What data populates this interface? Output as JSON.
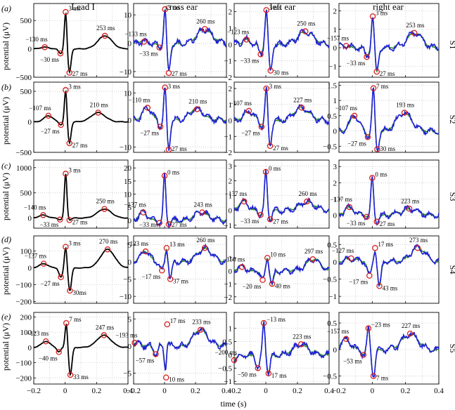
{
  "figure": {
    "x_axis_label": "time (s)",
    "y_axis_label": "potential (μV)",
    "columns": [
      "Lead I",
      "cross ear",
      "left ear",
      "right ear"
    ],
    "rows": [
      {
        "label": "(a)",
        "subject": "S1"
      },
      {
        "label": "(b)",
        "subject": "S2"
      },
      {
        "label": "(c)",
        "subject": "S3"
      },
      {
        "label": "(d)",
        "subject": "S4"
      },
      {
        "label": "(e)",
        "subject": "S5"
      }
    ],
    "series_colors": {
      "lead": "#000000",
      "ear_primary": "#1f1fd6",
      "ear_secondary": "#2e8b2e",
      "marker": "#d62020"
    }
  },
  "chart_data": {
    "type": "line",
    "x_range": [
      -0.2,
      0.4
    ],
    "x_ticks": [
      -0.2,
      0,
      0.2,
      0.4
    ],
    "x_tick_labels": [
      "−0.2",
      "0",
      "0.2",
      "0.4"
    ],
    "grid": true,
    "panels": [
      {
        "row": 0,
        "col": 0,
        "ylim": [
          -500,
          800
        ],
        "yticks": [
          500,
          0,
          -500
        ],
        "features": [
          [
            -0.13,
            30
          ],
          [
            -0.03,
            -80
          ],
          [
            0.003,
            650
          ],
          [
            0.027,
            -420
          ],
          [
            0.253,
            230
          ]
        ],
        "labels": [
          "−130 ms",
          "−30 ms",
          "3 ms",
          "27 ms",
          "253 ms"
        ]
      },
      {
        "row": 0,
        "col": 1,
        "ylim": [
          -12,
          14
        ],
        "yticks": [
          10,
          0,
          -10
        ],
        "features": [
          [
            -0.133,
            0.5
          ],
          [
            -0.033,
            -1.5
          ],
          [
            0.003,
            12
          ],
          [
            0.027,
            -10.5
          ],
          [
            0.26,
            5
          ]
        ],
        "labels": [
          "−133 ms",
          "−33 ms",
          "3 ms",
          "27 ms",
          "260 ms"
        ]
      },
      {
        "row": 0,
        "col": 2,
        "ylim": [
          -2,
          2.5
        ],
        "yticks": [
          2,
          1,
          0,
          -1,
          -2
        ],
        "features": [
          [
            -0.123,
            0.3
          ],
          [
            -0.033,
            -0.6
          ],
          [
            0.003,
            2.1
          ],
          [
            0.03,
            -1.6
          ],
          [
            0.25,
            0.8
          ]
        ],
        "labels": [
          "−123 ms",
          "−33 ms",
          "3 ms",
          "30 ms",
          "250 ms"
        ]
      },
      {
        "row": 0,
        "col": 3,
        "ylim": [
          -1.6,
          2.4
        ],
        "yticks": [
          2,
          1,
          0,
          -1
        ],
        "features": [
          [
            -0.157,
            0.1
          ],
          [
            -0.033,
            -0.5
          ],
          [
            0.003,
            1.7
          ],
          [
            0.027,
            -1.3
          ],
          [
            0.253,
            0.8
          ]
        ],
        "labels": [
          "−157 ms",
          "−33 ms",
          "3 ms",
          "27 ms",
          "253 ms"
        ]
      },
      {
        "row": 1,
        "col": 0,
        "ylim": [
          -500,
          650
        ],
        "yticks": [
          500,
          0,
          -500
        ],
        "features": [
          [
            -0.107,
            100
          ],
          [
            -0.027,
            -50
          ],
          [
            0.003,
            520
          ],
          [
            0.027,
            -350
          ],
          [
            0.21,
            150
          ]
        ],
        "labels": [
          "−107 ms",
          "−27 ms",
          "3 ms",
          "27 ms",
          "210 ms"
        ]
      },
      {
        "row": 1,
        "col": 1,
        "ylim": [
          -12,
          14
        ],
        "yticks": [
          10,
          0,
          -10
        ],
        "features": [
          [
            -0.11,
            4.5
          ],
          [
            -0.027,
            -2.5
          ],
          [
            0.003,
            12
          ],
          [
            0.027,
            -11
          ],
          [
            0.21,
            4
          ]
        ],
        "labels": [
          "−110 ms",
          "−27 ms",
          "3 ms",
          "27 ms",
          "210 ms"
        ]
      },
      {
        "row": 1,
        "col": 2,
        "ylim": [
          -2,
          2.4
        ],
        "yticks": [
          2,
          1,
          0,
          -1,
          -2
        ],
        "features": [
          [
            -0.107,
            0.6
          ],
          [
            -0.027,
            -0.4
          ],
          [
            0.003,
            2.0
          ],
          [
            0.027,
            -1.6
          ],
          [
            0.227,
            0.8
          ]
        ],
        "labels": [
          "−107 ms",
          "−27 ms",
          "3 ms",
          "27 ms",
          "227 ms"
        ]
      },
      {
        "row": 1,
        "col": 3,
        "ylim": [
          -0.7,
          1.6
        ],
        "yticks": [
          1.5,
          1,
          0.5,
          0,
          -0.5
        ],
        "features": [
          [
            -0.107,
            0.5
          ],
          [
            -0.027,
            -0.2
          ],
          [
            0.007,
            1.4
          ],
          [
            0.03,
            -0.6
          ],
          [
            0.193,
            0.6
          ]
        ],
        "labels": [
          "−107 ms",
          "−27 ms",
          "7 ms",
          "30 ms",
          "193 ms"
        ]
      },
      {
        "row": 2,
        "col": 0,
        "ylim": [
          -200,
          1150
        ],
        "yticks": [
          1000,
          500,
          0
        ],
        "features": [
          [
            -0.14,
            60
          ],
          [
            -0.033,
            -30
          ],
          [
            0.003,
            880
          ],
          [
            0.027,
            -40
          ],
          [
            0.25,
            180
          ]
        ],
        "labels": [
          "−140 ms",
          "−33 ms",
          "3 ms",
          "27 ms",
          "250 ms"
        ]
      },
      {
        "row": 2,
        "col": 1,
        "ylim": [
          -3,
          23
        ],
        "yticks": [
          20,
          15,
          10,
          5,
          0
        ],
        "features": [
          [
            -0.137,
            3
          ],
          [
            -0.033,
            -1
          ],
          [
            0.0,
            17
          ],
          [
            0.027,
            -1.5
          ],
          [
            0.243,
            3
          ]
        ],
        "labels": [
          "−137 ms",
          "−33 ms",
          "0 ms",
          "27 ms",
          "243 ms"
        ]
      },
      {
        "row": 2,
        "col": 2,
        "ylim": [
          -1.2,
          3.4
        ],
        "yticks": [
          3,
          2,
          1,
          0,
          -1
        ],
        "features": [
          [
            -0.137,
            0.6
          ],
          [
            -0.033,
            -0.3
          ],
          [
            0.0,
            2.6
          ],
          [
            0.027,
            -0.6
          ],
          [
            0.26,
            0.6
          ]
        ],
        "labels": [
          "−137 ms",
          "−33 ms",
          "0 ms",
          "27 ms",
          "260 ms"
        ]
      },
      {
        "row": 2,
        "col": 3,
        "ylim": [
          -0.8,
          3.4
        ],
        "yticks": [
          3,
          2,
          1,
          0
        ],
        "features": [
          [
            -0.137,
            0.5
          ],
          [
            -0.033,
            -0.1
          ],
          [
            0.0,
            2.3
          ],
          [
            0.027,
            -0.4
          ],
          [
            0.223,
            0.4
          ]
        ],
        "labels": [
          "−137 ms",
          "−33 ms",
          "0 ms",
          "27 ms",
          "223 ms"
        ]
      },
      {
        "row": 3,
        "col": 0,
        "ylim": [
          -210,
          190
        ],
        "yticks": [
          100,
          0,
          -100,
          -200
        ],
        "features": [
          [
            -0.137,
            25
          ],
          [
            -0.027,
            -55
          ],
          [
            0.003,
            125
          ],
          [
            0.03,
            -135
          ],
          [
            0.27,
            110
          ]
        ],
        "labels": [
          "−137 ms",
          "−27 ms",
          "3 ms",
          "30ms",
          "270 ms"
        ]
      },
      {
        "row": 3,
        "col": 1,
        "ylim": [
          -12,
          7.5
        ],
        "yticks": [
          5,
          0,
          -5,
          -10
        ],
        "features": [
          [
            -0.123,
            3
          ],
          [
            -0.017,
            -2.5
          ],
          [
            0.013,
            4
          ],
          [
            0.037,
            -5
          ],
          [
            0.26,
            4
          ]
        ],
        "labels": [
          "−123 ms",
          "−17 ms",
          "13 ms",
          "37 ms",
          "260 ms"
        ]
      },
      {
        "row": 3,
        "col": 2,
        "ylim": [
          -2.5,
          2.7
        ],
        "yticks": [
          1,
          0,
          -1,
          -2
        ],
        "features": [
          [
            -0.15,
            0.3
          ],
          [
            -0.02,
            -0.7
          ],
          [
            0.01,
            1.0
          ],
          [
            0.04,
            -1.0
          ],
          [
            0.297,
            0.9
          ]
        ],
        "labels": [
          "−150 ms",
          "−20 ms",
          "10 ms",
          "40 ms",
          "297 ms"
        ]
      },
      {
        "row": 3,
        "col": 3,
        "ylim": [
          -1.2,
          0.75
        ],
        "yticks": [
          0.5,
          0,
          -0.5,
          -1
        ],
        "features": [
          [
            -0.127,
            0.1
          ],
          [
            -0.017,
            -0.4
          ],
          [
            0.017,
            0.4
          ],
          [
            0.043,
            -0.7
          ],
          [
            0.273,
            0.4
          ]
        ],
        "labels": [
          "−127 ms",
          "−17 ms",
          "17 ms",
          "43 ms",
          "273 ms"
        ]
      },
      {
        "row": 4,
        "col": 0,
        "ylim": [
          -240,
          230
        ],
        "yticks": [
          200,
          100,
          0,
          -100,
          -200
        ],
        "features": [
          [
            -0.123,
            40
          ],
          [
            -0.04,
            -30
          ],
          [
            0.007,
            160
          ],
          [
            0.033,
            -180
          ],
          [
            0.247,
            80
          ]
        ],
        "labels": [
          "−123 ms",
          "−40 ms",
          "7 ms",
          "33 ms",
          "247 ms"
        ]
      },
      {
        "row": 4,
        "col": 1,
        "ylim": [
          -7,
          6.2
        ],
        "yticks": [
          5,
          0,
          -5
        ],
        "features": [
          [
            -0.193,
            0.6
          ],
          [
            -0.057,
            -1.5
          ],
          [
            0.017,
            4
          ],
          [
            0.01,
            -5.8
          ],
          [
            0.233,
            3
          ]
        ],
        "labels": [
          "−193 ms",
          "−57 ms",
          "17 ms",
          "10 ms",
          "233 ms"
        ]
      },
      {
        "row": 4,
        "col": 2,
        "ylim": [
          -1.1,
          1.6
        ],
        "yticks": [
          1,
          0.5,
          0,
          -0.5,
          -1
        ],
        "features": [
          [
            -0.2,
            -0.2
          ],
          [
            -0.05,
            -0.5
          ],
          [
            -0.013,
            1.2
          ],
          [
            0.017,
            -0.7
          ],
          [
            0.223,
            0.4
          ]
        ],
        "labels": [
          "−200 ms",
          "−50 ms",
          "−13 ms",
          "17 ms",
          "223 ms"
        ]
      },
      {
        "row": 4,
        "col": 3,
        "ylim": [
          -0.65,
          0.7
        ],
        "yticks": [
          0.5,
          0,
          -0.5
        ],
        "features": [
          [
            -0.157,
            0.2
          ],
          [
            -0.053,
            -0.1
          ],
          [
            -0.023,
            0.4
          ],
          [
            0.007,
            -0.5
          ],
          [
            0.227,
            0.3
          ]
        ],
        "labels": [
          "−157 ms",
          "−53 ms",
          "−23 ms",
          "7 ms",
          "227 ms"
        ]
      }
    ]
  }
}
